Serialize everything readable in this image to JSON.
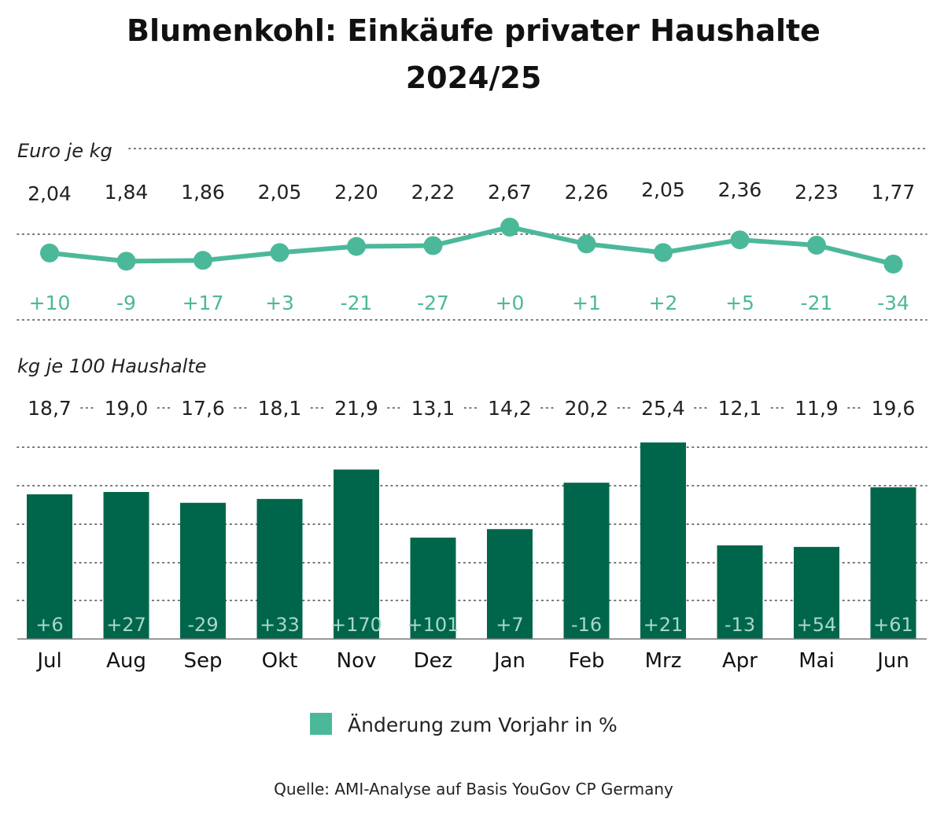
{
  "title_line1": "Blumenkohl: Einkäufe privater Haushalte",
  "title_line2": "2024/25",
  "legend_label": "Änderung zum Vorjahr in %",
  "source": "Quelle: AMI-Analyse auf Basis YouGov CP Germany",
  "colors": {
    "line": "#4cb89a",
    "bar": "#00664b",
    "change_text": "#4cb89a",
    "change_text_on_bar": "#a8d8c8",
    "legend_swatch": "#4cb89a"
  },
  "chart_data": [
    {
      "type": "line",
      "ylabel": "Euro je kg",
      "categories": [
        "Jul",
        "Aug",
        "Sep",
        "Okt",
        "Nov",
        "Dez",
        "Jan",
        "Feb",
        "Mrz",
        "Apr",
        "Mai",
        "Jun"
      ],
      "values": [
        2.04,
        1.84,
        1.86,
        2.05,
        2.2,
        2.22,
        2.67,
        2.26,
        2.05,
        2.36,
        2.23,
        1.77
      ],
      "value_labels": [
        "2,04",
        "1,84",
        "1,86",
        "2,05",
        "2,20",
        "2,22",
        "2,67",
        "2,26",
        "2,05",
        "2,36",
        "2,23",
        "1,77"
      ],
      "change_labels": [
        "+10",
        "-9",
        "+17",
        "+3",
        "-21",
        "-27",
        "+0",
        "+1",
        "+2",
        "+5",
        "-21",
        "-34"
      ],
      "grid": true
    },
    {
      "type": "bar",
      "ylabel": "kg je 100 Haushalte",
      "categories": [
        "Jul",
        "Aug",
        "Sep",
        "Okt",
        "Nov",
        "Dez",
        "Jan",
        "Feb",
        "Mrz",
        "Apr",
        "Mai",
        "Jun"
      ],
      "values": [
        18.7,
        19.0,
        17.6,
        18.1,
        21.9,
        13.1,
        14.2,
        20.2,
        25.4,
        12.1,
        11.9,
        19.6
      ],
      "value_labels": [
        "18,7",
        "19,0",
        "17,6",
        "18,1",
        "21,9",
        "13,1",
        "14,2",
        "20,2",
        "25,4",
        "12,1",
        "11,9",
        "19,6"
      ],
      "change_labels": [
        "+6",
        "+27",
        "-29",
        "+33",
        "+170",
        "+101",
        "+7",
        "-16",
        "+21",
        "-13",
        "+54",
        "+61"
      ],
      "grid": true,
      "legend": "bottom"
    }
  ]
}
